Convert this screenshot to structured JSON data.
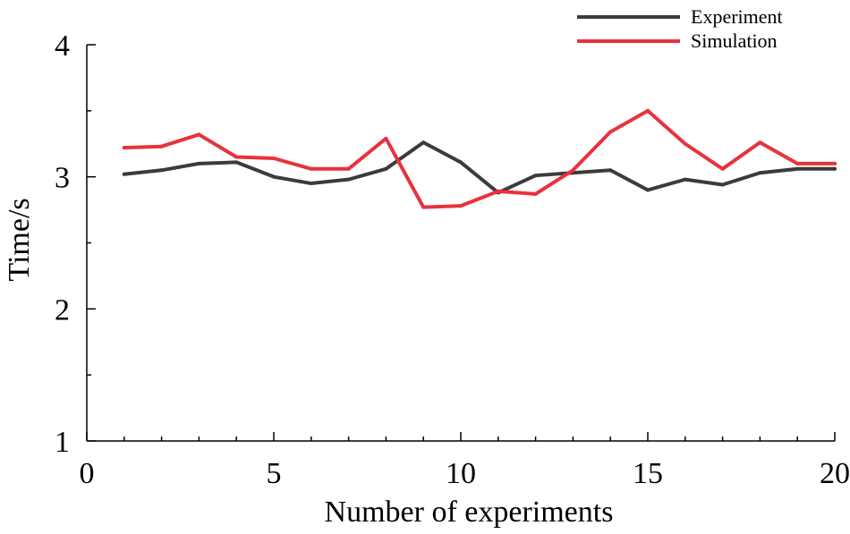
{
  "chart_data": {
    "type": "line",
    "title": "",
    "xlabel": "Number of experiments",
    "ylabel": "Time/s",
    "xlim": [
      0,
      20
    ],
    "ylim": [
      1,
      4
    ],
    "x_ticks": [
      "0",
      "5",
      "10",
      "15",
      "20"
    ],
    "y_ticks": [
      "1",
      "2",
      "3",
      "4"
    ],
    "x": [
      1,
      2,
      3,
      4,
      5,
      6,
      7,
      8,
      9,
      10,
      11,
      12,
      13,
      14,
      15,
      16,
      17,
      18,
      19,
      20
    ],
    "series": [
      {
        "name": "Experiment",
        "color": "#3b3b3b",
        "values": [
          3.02,
          3.05,
          3.1,
          3.11,
          3.0,
          2.95,
          2.98,
          3.06,
          3.26,
          3.11,
          2.88,
          3.01,
          3.03,
          3.05,
          2.9,
          2.98,
          2.94,
          3.03,
          3.06,
          3.06
        ]
      },
      {
        "name": "Simulation",
        "color": "#e8323c",
        "values": [
          3.22,
          3.23,
          3.32,
          3.15,
          3.14,
          3.06,
          3.06,
          3.29,
          2.77,
          2.78,
          2.89,
          2.87,
          3.05,
          3.34,
          3.5,
          3.25,
          3.06,
          3.26,
          3.1,
          3.1
        ]
      }
    ],
    "legend_position": "top-right",
    "grid": false
  }
}
